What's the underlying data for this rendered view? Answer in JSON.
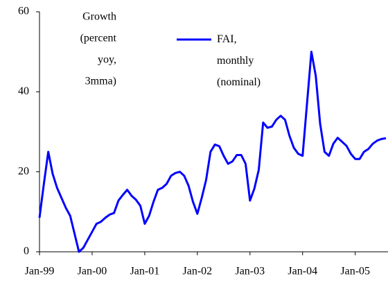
{
  "chart_data": {
    "type": "line",
    "annotation": [
      "Growth",
      "(percent",
      "yoy,",
      "3mma)"
    ],
    "categories": [
      "Jan-99",
      null,
      null,
      null,
      null,
      null,
      null,
      null,
      null,
      null,
      null,
      null,
      "Jan-00",
      null,
      null,
      null,
      null,
      null,
      null,
      null,
      null,
      null,
      null,
      null,
      "Jan-01",
      null,
      null,
      null,
      null,
      null,
      null,
      null,
      null,
      null,
      null,
      null,
      "Jan-02",
      null,
      null,
      null,
      null,
      null,
      null,
      null,
      null,
      null,
      null,
      null,
      "Jan-03",
      null,
      null,
      null,
      null,
      null,
      null,
      null,
      null,
      null,
      null,
      null,
      "Jan-04",
      null,
      null,
      null,
      null,
      null,
      null,
      null,
      null,
      null,
      null,
      null,
      "Jan-05",
      null,
      null,
      null,
      null,
      null,
      null,
      null
    ],
    "series": [
      {
        "name": "FAI, monthly (nominal)",
        "color": "#0000ff",
        "values": [
          8.5,
          17,
          25,
          19.5,
          16,
          13.5,
          11,
          9,
          4.5,
          0,
          1,
          3,
          5,
          7,
          7.5,
          8.5,
          9.3,
          9.7,
          12.8,
          14.2,
          15.5,
          14,
          13,
          11.5,
          7,
          9,
          12.5,
          15.5,
          16,
          17,
          19,
          19.7,
          20,
          19,
          16.5,
          12.5,
          9.5,
          13.5,
          18,
          25,
          26.8,
          26.4,
          24,
          22,
          22.6,
          24.2,
          24.2,
          22,
          12.8,
          15.8,
          20.5,
          32.3,
          31,
          31.3,
          33,
          34,
          33,
          29,
          26,
          24.5,
          24,
          37,
          50,
          44,
          32,
          25,
          24,
          27,
          28.5,
          27.5,
          26.5,
          24.5,
          23.2,
          23.2,
          25,
          25.7,
          27,
          27.8,
          28.2,
          28.4
        ]
      }
    ],
    "ylim": [
      0,
      60
    ],
    "yticks": [
      0,
      20,
      40,
      60
    ],
    "grid": false
  }
}
